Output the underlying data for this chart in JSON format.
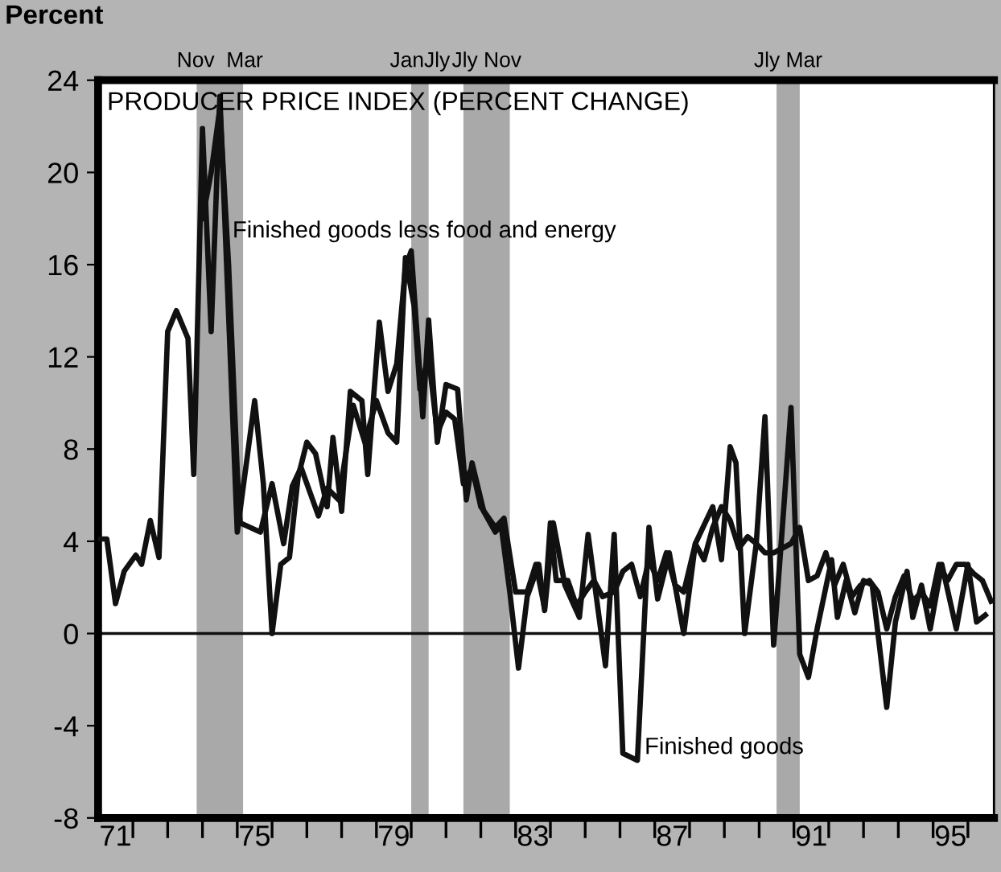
{
  "chart_data": {
    "type": "line",
    "title": "PRODUCER PRICE INDEX (PERCENT CHANGE)",
    "ylabel": "Percent",
    "series": [
      {
        "name": "Finished goods",
        "color": "#111111",
        "x": [
          "1971-01",
          "1971-04",
          "1971-07",
          "1971-10",
          "1972-02",
          "1972-04",
          "1972-07",
          "1972-10",
          "1973-01",
          "1973-04",
          "1973-08",
          "1973-10",
          "1974-01",
          "1974-04",
          "1974-07",
          "1975-01",
          "1975-07",
          "1975-10",
          "1976-01",
          "1976-04",
          "1976-07",
          "1976-10",
          "1977-01",
          "1977-04",
          "1977-08",
          "1977-10",
          "1978-01",
          "1978-04",
          "1978-08",
          "1978-10",
          "1979-02",
          "1979-05",
          "1979-08",
          "1979-11",
          "1980-01",
          "1980-05",
          "1980-07",
          "1980-10",
          "1981-01",
          "1981-05",
          "1981-08",
          "1981-10",
          "1982-02",
          "1982-06",
          "1982-08",
          "1982-11",
          "1983-02",
          "1983-05",
          "1983-09",
          "1983-11",
          "1984-02",
          "1984-06",
          "1984-11",
          "1985-02",
          "1985-08",
          "1985-11",
          "1986-02",
          "1986-07",
          "1986-11",
          "1987-02",
          "1987-06",
          "1987-11",
          "1988-03",
          "1988-09",
          "1988-12",
          "1989-03",
          "1989-05",
          "1989-08",
          "1989-12",
          "1990-03",
          "1990-06",
          "1990-09",
          "1990-12",
          "1991-03",
          "1991-06",
          "1991-09",
          "1992-02",
          "1992-04",
          "1992-07",
          "1992-10",
          "1993-01",
          "1993-04",
          "1993-09",
          "1993-12",
          "1994-04",
          "1994-06",
          "1994-09",
          "1994-12",
          "1995-04",
          "1995-09",
          "1996-01",
          "1996-04",
          "1996-07"
        ],
        "values": [
          4.1,
          4.1,
          1.3,
          2.7,
          3.4,
          3.0,
          4.9,
          3.3,
          13.1,
          14.0,
          12.8,
          6.9,
          21.9,
          13.1,
          23.3,
          4.4,
          10.1,
          6.5,
          0.0,
          3.0,
          3.3,
          6.8,
          8.3,
          7.8,
          5.5,
          8.5,
          5.3,
          10.5,
          10.1,
          6.9,
          13.5,
          10.5,
          11.7,
          15.9,
          16.6,
          9.4,
          13.6,
          8.3,
          10.8,
          10.6,
          5.8,
          7.4,
          5.3,
          4.4,
          4.7,
          1.8,
          -1.5,
          1.6,
          3.0,
          1.0,
          4.8,
          2.1,
          0.7,
          4.3,
          -1.4,
          4.3,
          -5.2,
          -5.5,
          4.6,
          1.5,
          3.5,
          0.0,
          3.9,
          5.5,
          3.2,
          8.1,
          7.4,
          0.0,
          3.9,
          9.4,
          -0.5,
          4.6,
          9.8,
          -0.9,
          -1.9,
          0.2,
          3.2,
          0.7,
          2.3,
          0.9,
          2.3,
          2.1,
          -3.2,
          0.5,
          2.7,
          0.7,
          2.1,
          0.2,
          3.0,
          0.2,
          3.0,
          0.5,
          0.8
        ]
      },
      {
        "name": "Finished goods less food and energy",
        "color": "#111111",
        "x": [
          "1974-01",
          "1974-04",
          "1974-07",
          "1974-10",
          "1975-01",
          "1975-02",
          "1975-09",
          "1976-01",
          "1976-05",
          "1976-08",
          "1976-11",
          "1977-05",
          "1977-08",
          "1977-12",
          "1978-05",
          "1978-09",
          "1979-01",
          "1979-05",
          "1979-08",
          "1979-11",
          "1980-02",
          "1980-04",
          "1980-07",
          "1980-10",
          "1981-01",
          "1981-04",
          "1981-07",
          "1981-10",
          "1982-01",
          "1982-06",
          "1982-09",
          "1983-01",
          "1983-05",
          "1983-08",
          "1983-11",
          "1984-01",
          "1984-03",
          "1984-07",
          "1984-10",
          "1985-01",
          "1985-04",
          "1985-07",
          "1985-11",
          "1986-02",
          "1986-05",
          "1986-08",
          "1986-11",
          "1987-02",
          "1987-05",
          "1987-08",
          "1987-11",
          "1988-03",
          "1988-06",
          "1988-09",
          "1988-12",
          "1989-03",
          "1989-06",
          "1989-09",
          "1989-12",
          "1990-03",
          "1990-06",
          "1990-09",
          "1990-12",
          "1991-03",
          "1991-06",
          "1991-09",
          "1991-12",
          "1992-03",
          "1992-06",
          "1992-09",
          "1992-12",
          "1993-03",
          "1993-06",
          "1993-09",
          "1993-12",
          "1994-03",
          "1994-06",
          "1994-09",
          "1994-12",
          "1995-03",
          "1995-06",
          "1995-09",
          "1995-12",
          "1996-03",
          "1996-06",
          "1996-09"
        ],
        "values": [
          18.0,
          20.0,
          22.8,
          16.0,
          7.0,
          4.8,
          4.4,
          6.5,
          3.9,
          6.4,
          7.2,
          5.1,
          6.3,
          5.8,
          9.9,
          8.3,
          10.1,
          8.7,
          8.3,
          16.3,
          14.2,
          10.6,
          12.0,
          8.7,
          9.6,
          9.3,
          6.5,
          7.2,
          5.5,
          4.6,
          5.0,
          1.8,
          1.8,
          3.0,
          1.1,
          4.8,
          2.3,
          2.3,
          1.2,
          1.8,
          2.3,
          1.6,
          1.8,
          2.7,
          3.0,
          1.6,
          3.2,
          2.3,
          3.5,
          2.1,
          1.8,
          3.9,
          3.2,
          4.6,
          5.5,
          4.9,
          3.7,
          4.2,
          3.9,
          3.5,
          3.5,
          3.7,
          3.9,
          4.6,
          2.3,
          2.5,
          3.5,
          2.1,
          3.0,
          1.6,
          2.1,
          2.3,
          1.8,
          0.2,
          1.6,
          2.5,
          1.4,
          1.8,
          1.2,
          3.0,
          2.3,
          3.0,
          3.0,
          2.6,
          2.3,
          1.4
        ]
      }
    ],
    "xlim": [
      "1971-01",
      "1996-10"
    ],
    "xticks": [
      {
        "value": "1972-01",
        "label": null
      },
      {
        "value": "1973-01",
        "label": null
      },
      {
        "value": "1974-01",
        "label": null
      },
      {
        "value": "1975-01",
        "label": null
      },
      {
        "value": "1976-01",
        "label": null
      },
      {
        "value": "1977-01",
        "label": null
      },
      {
        "value": "1978-01",
        "label": null
      },
      {
        "value": "1979-01",
        "label": null
      },
      {
        "value": "1980-01",
        "label": null
      },
      {
        "value": "1981-01",
        "label": null
      },
      {
        "value": "1982-01",
        "label": null
      },
      {
        "value": "1983-01",
        "label": null
      },
      {
        "value": "1984-01",
        "label": null
      },
      {
        "value": "1985-01",
        "label": null
      },
      {
        "value": "1986-01",
        "label": null
      },
      {
        "value": "1987-01",
        "label": null
      },
      {
        "value": "1988-01",
        "label": null
      },
      {
        "value": "1989-01",
        "label": null
      },
      {
        "value": "1990-01",
        "label": null
      },
      {
        "value": "1991-01",
        "label": null
      },
      {
        "value": "1992-01",
        "label": null
      },
      {
        "value": "1993-01",
        "label": null
      },
      {
        "value": "1994-01",
        "label": null
      },
      {
        "value": "1995-01",
        "label": null
      },
      {
        "value": "1996-01",
        "label": null
      },
      {
        "value": "1971-07",
        "label": "71"
      },
      {
        "value": "1975-07",
        "label": "75"
      },
      {
        "value": "1979-07",
        "label": "79"
      },
      {
        "value": "1983-07",
        "label": "83"
      },
      {
        "value": "1987-07",
        "label": "87"
      },
      {
        "value": "1991-07",
        "label": "91"
      },
      {
        "value": "1995-07",
        "label": "95"
      }
    ],
    "ylim": [
      -8,
      24
    ],
    "yticks": [
      -8,
      -4,
      0,
      4,
      8,
      12,
      16,
      20,
      24
    ],
    "ref_lines": [
      {
        "axis": "y",
        "value": 0,
        "color": "#111111"
      }
    ],
    "bands": [
      {
        "axis": "x",
        "from": "1973-11",
        "to": "1975-03",
        "label": "Nov  Mar",
        "color": "#a9a9a9"
      },
      {
        "axis": "x",
        "from": "1980-01",
        "to": "1980-07",
        "label": "JanJly",
        "color": "#a9a9a9"
      },
      {
        "axis": "x",
        "from": "1981-07",
        "to": "1982-11",
        "label": "Jly Nov",
        "color": "#a9a9a9"
      },
      {
        "axis": "x",
        "from": "1990-07",
        "to": "1991-03",
        "label": "Jly Mar",
        "color": "#a9a9a9"
      }
    ],
    "grid": false,
    "legend": false,
    "line_style": "solid",
    "marker": "none"
  }
}
